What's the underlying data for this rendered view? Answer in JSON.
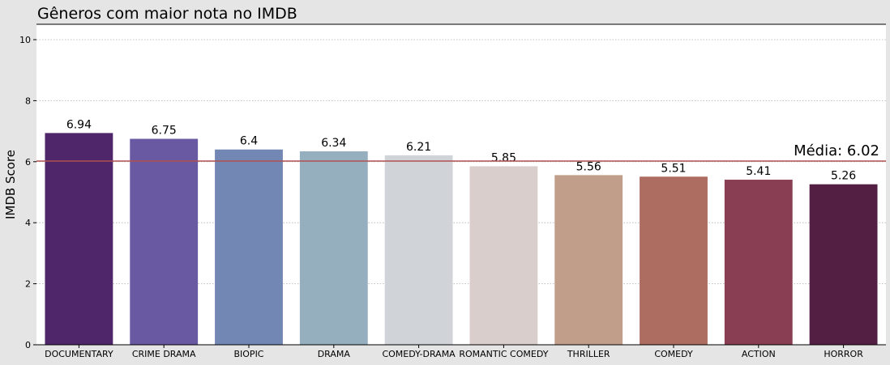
{
  "chart_data": {
    "type": "bar",
    "title": "Gêneros com maior nota no IMDB",
    "xlabel": "",
    "ylabel": "IMDB Score",
    "ylim": [
      0,
      10.5
    ],
    "yticks": [
      0,
      2,
      4,
      6,
      8,
      10
    ],
    "grid": true,
    "categories": [
      "DOCUMENTARY",
      "CRIME DRAMA",
      "BIOPIC",
      "DRAMA",
      "COMEDY-DRAMA",
      "ROMANTIC COMEDY",
      "THRILLER",
      "COMEDY",
      "ACTION",
      "HORROR"
    ],
    "values": [
      6.94,
      6.75,
      6.4,
      6.34,
      6.21,
      5.85,
      5.56,
      5.51,
      5.41,
      5.26
    ],
    "value_labels": [
      "6.94",
      "6.75",
      "6.4",
      "6.34",
      "6.21",
      "5.85",
      "5.56",
      "5.51",
      "5.41",
      "5.26"
    ],
    "bar_colors": [
      "#50266b",
      "#6859a2",
      "#7387b4",
      "#95afbe",
      "#d0d4d9",
      "#dacecd",
      "#c19e89",
      "#ad6d60",
      "#893e54",
      "#531f43"
    ],
    "average": {
      "value": 6.02,
      "label": "Média: 6.02",
      "color": "#b05050"
    }
  }
}
